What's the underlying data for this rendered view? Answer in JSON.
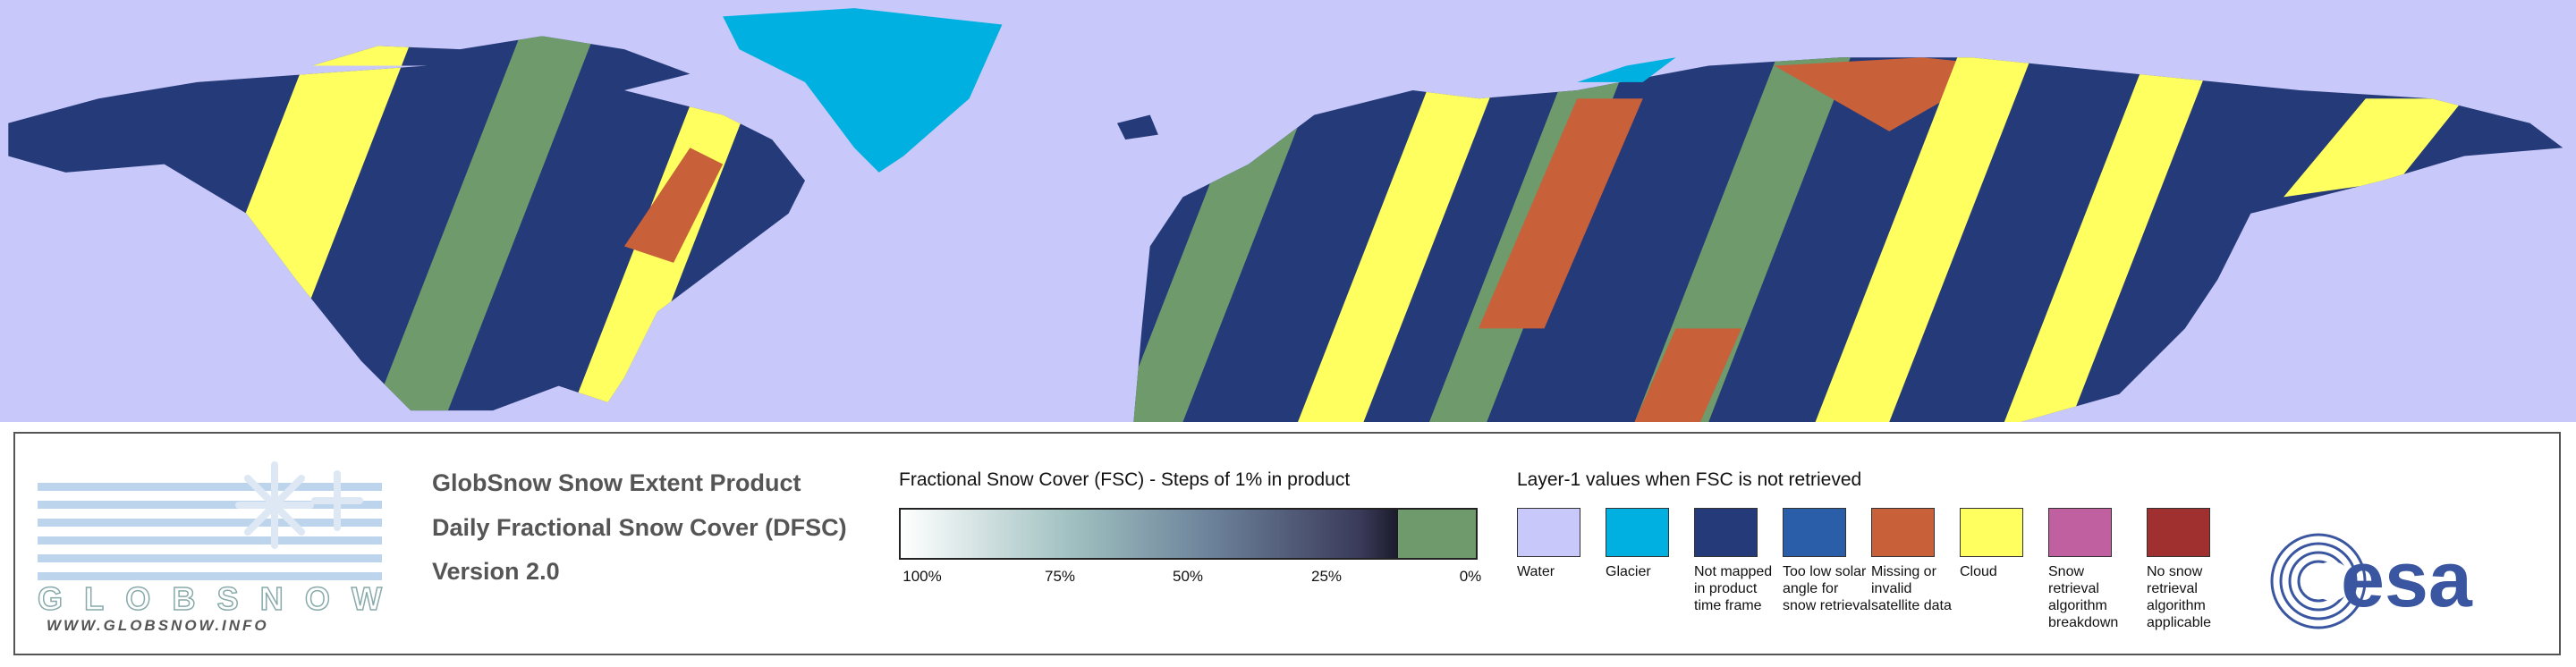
{
  "header": {
    "title": "GlobSnow Snow Extent Product",
    "subtitle": "Daily Fractional Snow Cover (DFSC)",
    "version": "Version 2.0"
  },
  "logo": {
    "name": "GLOBSNOW",
    "url": "WWW.GLOBSNOW.INFO"
  },
  "colorbar": {
    "title": "Fractional Snow Cover (FSC) - Steps of 1% in product",
    "labels": [
      "100%",
      "75%",
      "50%",
      "25%",
      "0%"
    ]
  },
  "legend": {
    "title": "Layer-1 values when FSC is not retrieved",
    "items": [
      {
        "label": "Water",
        "color": "#c8c8fa"
      },
      {
        "label": "Glacier",
        "color": "#00b0e0"
      },
      {
        "label": "Not mapped in product time frame",
        "color": "#253a78"
      },
      {
        "label": "Too low solar angle for snow retrieval",
        "color": "#2a5ea8"
      },
      {
        "label": "Missing or invalid satellite data",
        "color": "#c8603a"
      },
      {
        "label": "Cloud",
        "color": "#ffff60"
      },
      {
        "label": "Snow retrieval algorithm breakdown",
        "color": "#c060a0"
      },
      {
        "label": "No snow retrieval algorithm applicable",
        "color": "#a03030"
      }
    ]
  },
  "agency": "esa"
}
